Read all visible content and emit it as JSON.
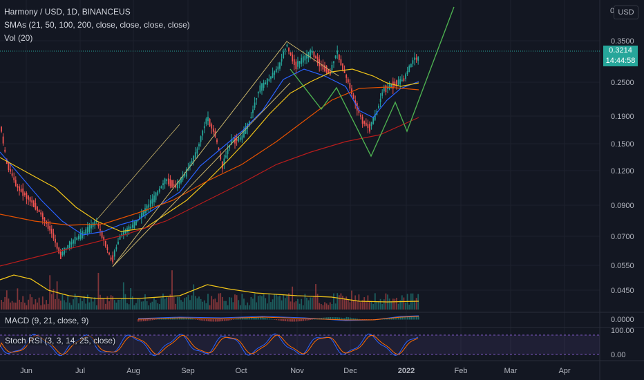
{
  "header": {
    "title": "Harmony / USD, 1D, BINANCEUS",
    "indicator_sma": "SMAs (21, 50, 100, 200, close, close, close, close)",
    "indicator_vol": "Vol (20)",
    "currency_button": "USD",
    "axis_top_truncated": "0."
  },
  "price_axis": {
    "ticks": [
      "0.3500",
      "0.2500",
      "0.1900",
      "0.1500",
      "0.1200",
      "0.0900",
      "0.0700",
      "0.0550",
      "0.0450"
    ],
    "current_price": "0.3214",
    "countdown": "14:44:58"
  },
  "macd": {
    "label": "MACD (9, 21, close, 9)",
    "axis_tick": "0.0000"
  },
  "stoch": {
    "label": "Stoch RSI (3, 3, 14, 25, close)",
    "axis_ticks": [
      "100.00",
      "0.00"
    ]
  },
  "time_axis": {
    "labels": [
      "Jun",
      "Jul",
      "Aug",
      "Sep",
      "Oct",
      "Nov",
      "Dec",
      "2022",
      "Feb",
      "Mar",
      "Apr"
    ]
  },
  "colors": {
    "background": "#131722",
    "up": "#26a69a",
    "down": "#ef5350",
    "sma21": "#2962ff",
    "sma50": "#f0c419",
    "sma100": "#e65100",
    "sma200": "#b71c1c",
    "drawing_channel": "#c8b46a",
    "drawing_pattern": "#4caf50",
    "stoch_band": "#7e57c2"
  },
  "chart_data": {
    "type": "candlestick",
    "symbol": "Harmony / USD",
    "interval": "1D",
    "exchange": "BINANCEUS",
    "scale": "log",
    "approx_close_path": [
      {
        "x": "Jun",
        "y": 0.13
      },
      {
        "x": "Jul",
        "y": 0.058
      },
      {
        "x": "Aug",
        "y": 0.095
      },
      {
        "x": "Sep",
        "y": 0.2
      },
      {
        "x": "Oct",
        "y": 0.28
      },
      {
        "x": "Nov",
        "y": 0.32
      },
      {
        "x": "Dec",
        "y": 0.19
      },
      {
        "x": "2022",
        "y": 0.3214
      }
    ]
  }
}
